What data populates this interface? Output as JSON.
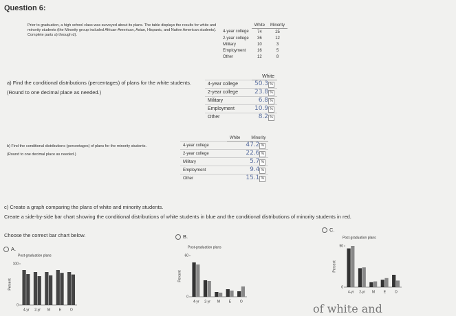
{
  "question": "Question 6:",
  "intro": "Prior to graduation, a high school class was surveyed about its plans. The table displays the results for white and minority students (the Minority group included African-American, Asian, Hispanic, and Native American students). Complete parts a) through d).",
  "survey_table": {
    "columns": [
      "White",
      "Minority"
    ],
    "rows": [
      {
        "label": "4-year college",
        "values": [
          74,
          25
        ]
      },
      {
        "label": "2-year college",
        "values": [
          36,
          12
        ]
      },
      {
        "label": "Military",
        "values": [
          10,
          3
        ]
      },
      {
        "label": "Employment",
        "values": [
          16,
          5
        ]
      },
      {
        "label": "Other",
        "values": [
          12,
          8
        ]
      }
    ]
  },
  "part_a": {
    "prompt": "a) Find the conditional distributions (percentages) of plans for the white students.",
    "note": "(Round to one decimal place as needed.)",
    "column": "White",
    "rows": [
      "4-year college",
      "2-year college",
      "Military",
      "Employment",
      "Other"
    ],
    "answers": [
      "50.3",
      "23.8",
      "6.8",
      "10.9",
      "8.2"
    ],
    "unit": "%"
  },
  "part_b": {
    "prompt": "b) Find the conditional distributions (percentages) of plans for the minority students.",
    "note": "(Round to one decimal place as needed.)",
    "columns": [
      "White",
      "Minority"
    ],
    "rows": [
      "4-year college",
      "2-year college",
      "Military",
      "Employment",
      "Other"
    ],
    "answers": [
      "47.2",
      "22.6",
      "5.7",
      "9.4",
      "15.1"
    ],
    "unit": "%"
  },
  "part_c": {
    "prompt": "c) Create a graph comparing the plans of white and minority students.",
    "instruction": "Create a side-by-side bar chart showing the conditional distributions of white students in blue and the conditional distributions of minority students in red.",
    "choose": "Choose the correct bar chart below.",
    "options": [
      {
        "label": "A.",
        "chart": {
          "type": "bar",
          "title": "Post-graduation plans",
          "ylabel": "Percent",
          "categories": [
            "4-yr",
            "2-yr",
            "M",
            "E",
            "O"
          ],
          "ylim": [
            0,
            100
          ],
          "yticks": [
            0,
            100
          ],
          "series": [
            {
              "color": "#444444",
              "values": [
                85,
                80,
                80,
                85,
                80
              ]
            },
            {
              "color": "#444444",
              "values": [
                75,
                70,
                72,
                78,
                74
              ]
            }
          ]
        }
      },
      {
        "label": "B.",
        "chart": {
          "type": "bar",
          "title": "Post-graduation plans",
          "ylabel": "Percent",
          "categories": [
            "4-yr",
            "2-yr",
            "M",
            "E",
            "O"
          ],
          "ylim": [
            0,
            60
          ],
          "yticks": [
            0,
            60
          ],
          "series": [
            {
              "color": "#333333",
              "values": [
                50,
                24,
                7,
                11,
                8
              ]
            },
            {
              "color": "#888888",
              "values": [
                47,
                23,
                6,
                9,
                15
              ]
            }
          ]
        }
      },
      {
        "label": "C.",
        "chart": {
          "type": "bar",
          "title": "Post-graduation plans",
          "ylabel": "Percent",
          "categories": [
            "4-yr",
            "2-yr",
            "M",
            "E",
            "O"
          ],
          "ylim": [
            0,
            50
          ],
          "yticks": [
            0,
            50
          ],
          "series": [
            {
              "color": "#333333",
              "values": [
                47,
                23,
                6,
                9,
                15
              ]
            },
            {
              "color": "#888888",
              "values": [
                50,
                24,
                7,
                11,
                8
              ]
            }
          ]
        }
      }
    ]
  },
  "footer_fragment": "of white and"
}
